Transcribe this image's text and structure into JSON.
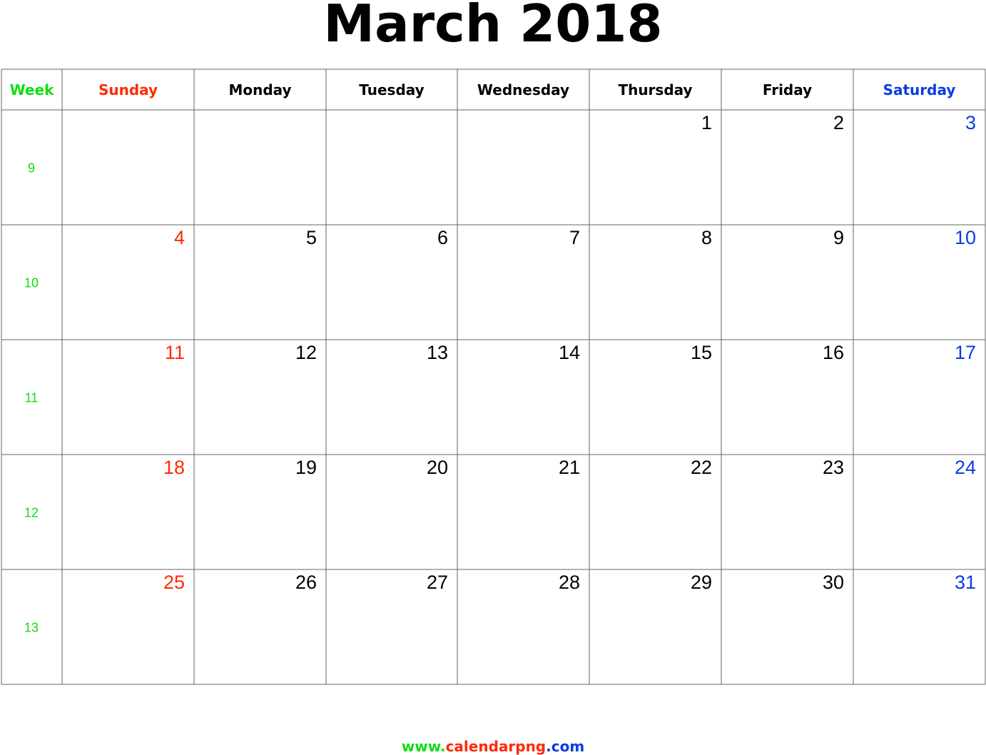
{
  "title": "March 2018",
  "headers": [
    "Week",
    "Sunday",
    "Monday",
    "Tuesday",
    "Wednesday",
    "Thursday",
    "Friday",
    "Saturday"
  ],
  "weeks": [
    {
      "number": "9",
      "days": [
        null,
        null,
        null,
        null,
        "1",
        "2",
        "3"
      ]
    },
    {
      "number": "10",
      "days": [
        "4",
        "5",
        "6",
        "7",
        "8",
        "9",
        "10"
      ]
    },
    {
      "number": "11",
      "days": [
        "11",
        "12",
        "13",
        "14",
        "15",
        "16",
        "17"
      ]
    },
    {
      "number": "12",
      "days": [
        "18",
        "19",
        "20",
        "21",
        "22",
        "23",
        "24"
      ]
    },
    {
      "number": "13",
      "days": [
        "25",
        "26",
        "27",
        "28",
        "29",
        "30",
        "31"
      ]
    }
  ],
  "footer": {
    "parts": [
      "www.",
      "calendarpng",
      ".com"
    ]
  }
}
